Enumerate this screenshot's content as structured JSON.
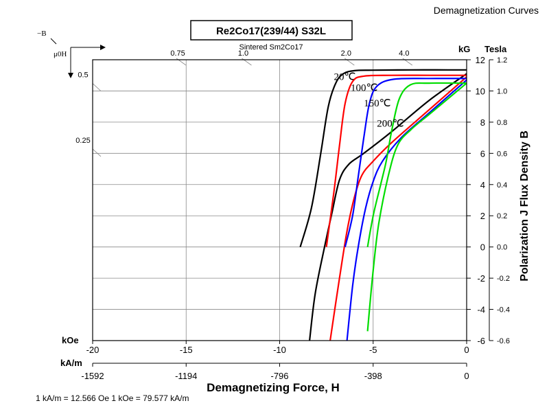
{
  "header": {
    "text": "Demagnetization Curves"
  },
  "chart_data": {
    "type": "line",
    "title": "Re2Co17(239/44) S32L",
    "subtitle": "Sintered Sm2Co17",
    "corner_label_top": "−B",
    "corner_label_bottom": "μ0H",
    "xlabel": "Demagnetizing Force, H",
    "ylabel": "Polarization J Flux Density B",
    "x_unit_koe": "kOe",
    "x_unit_kam": "kA/m",
    "y_unit_kg": "kG",
    "y_unit_tesla": "Tesla",
    "xlim": [
      -20,
      0
    ],
    "ylim": [
      -6,
      12
    ],
    "x_ticks_koe": [
      "-20",
      "-15",
      "-10",
      "-5",
      "0"
    ],
    "x_ticks_kam": [
      "-1592",
      "-1194",
      "-796",
      "-398",
      "0"
    ],
    "y_ticks_kg": [
      "12",
      "10",
      "8",
      "6",
      "4",
      "2",
      "0",
      "-2",
      "-4",
      "-6"
    ],
    "y_ticks_tesla": [
      "1.2",
      "1.0",
      "0.8",
      "0.6",
      "0.4",
      "0.2",
      "0.0",
      "-0.2",
      "-0.4",
      "-0.6"
    ],
    "permeance_top_labels": [
      {
        "text": "0.75",
        "h": -15.3
      },
      {
        "text": "1.0",
        "h": -11.8
      },
      {
        "text": "2.0",
        "h": -6.3
      },
      {
        "text": "4.0",
        "h": -3.2
      }
    ],
    "permeance_left_labels": [
      {
        "text": "0.5",
        "b": 10.7
      },
      {
        "text": "0.25",
        "b": 6.5
      }
    ],
    "footer_note": "1 kA/m = 12.566 Oe 1 kOe = 79.577 kA/m",
    "series": [
      {
        "name": "20℃",
        "label": "20℃",
        "color": "#000000",
        "label_at": [
          -7.1,
          10.7
        ],
        "j_curve": [
          [
            0,
            11.35
          ],
          [
            -1,
            11.35
          ],
          [
            -3,
            11.35
          ],
          [
            -5,
            11.33
          ],
          [
            -6,
            11.3
          ],
          [
            -6.6,
            11.1
          ],
          [
            -7.0,
            10.5
          ],
          [
            -7.4,
            9.0
          ],
          [
            -7.8,
            6.0
          ],
          [
            -8.3,
            2.5
          ],
          [
            -8.9,
            0
          ]
        ],
        "b_curve": [
          [
            0,
            11.1
          ],
          [
            -2,
            9.4
          ],
          [
            -4,
            7.4
          ],
          [
            -5.5,
            6.0
          ],
          [
            -6.3,
            5.3
          ],
          [
            -6.8,
            4.3
          ],
          [
            -7.2,
            2.2
          ],
          [
            -7.6,
            0
          ],
          [
            -8.1,
            -3.0
          ],
          [
            -8.4,
            -6.0
          ]
        ]
      },
      {
        "name": "100℃",
        "label": "100℃",
        "color": "#ff0000",
        "label_at": [
          -6.2,
          10.0
        ],
        "j_curve": [
          [
            0,
            11.0
          ],
          [
            -2,
            11.0
          ],
          [
            -4,
            11.0
          ],
          [
            -5.5,
            10.95
          ],
          [
            -6.1,
            10.6
          ],
          [
            -6.5,
            9.2
          ],
          [
            -6.8,
            6.5
          ],
          [
            -7.1,
            3.5
          ],
          [
            -7.5,
            0
          ]
        ],
        "b_curve": [
          [
            0,
            10.9
          ],
          [
            -2,
            8.8
          ],
          [
            -4,
            6.7
          ],
          [
            -5,
            5.5
          ],
          [
            -5.6,
            4.6
          ],
          [
            -6.0,
            3.2
          ],
          [
            -6.4,
            1.0
          ],
          [
            -6.8,
            -2.0
          ],
          [
            -7.3,
            -6.0
          ]
        ]
      },
      {
        "name": "150℃",
        "label": "150℃",
        "color": "#0000ff",
        "label_at": [
          -5.5,
          9.0
        ],
        "j_curve": [
          [
            0,
            10.8
          ],
          [
            -2,
            10.8
          ],
          [
            -3.9,
            10.75
          ],
          [
            -4.8,
            10.3
          ],
          [
            -5.2,
            9.2
          ],
          [
            -5.5,
            7.0
          ],
          [
            -5.8,
            4.5
          ],
          [
            -6.1,
            2.0
          ],
          [
            -6.5,
            0
          ]
        ],
        "b_curve": [
          [
            0,
            10.7
          ],
          [
            -2,
            8.6
          ],
          [
            -3.5,
            7.0
          ],
          [
            -4.5,
            5.5
          ],
          [
            -5.0,
            4.2
          ],
          [
            -5.4,
            2.5
          ],
          [
            -5.8,
            0
          ],
          [
            -6.1,
            -2.5
          ],
          [
            -6.4,
            -6.0
          ]
        ]
      },
      {
        "name": "200℃",
        "label": "200℃",
        "color": "#00dd00",
        "label_at": [
          -4.8,
          7.7
        ],
        "j_curve": [
          [
            0,
            10.5
          ],
          [
            -2,
            10.5
          ],
          [
            -3,
            10.4
          ],
          [
            -3.6,
            9.5
          ],
          [
            -4.0,
            7.5
          ],
          [
            -4.3,
            5.5
          ],
          [
            -4.6,
            4.0
          ],
          [
            -5.0,
            2.0
          ],
          [
            -5.3,
            0
          ]
        ],
        "b_curve": [
          [
            0,
            10.5
          ],
          [
            -0.5,
            10.0
          ],
          [
            -2,
            8.5
          ],
          [
            -3,
            7.5
          ],
          [
            -3.7,
            6.5
          ],
          [
            -4.2,
            4.5
          ],
          [
            -4.7,
            1.5
          ],
          [
            -5.0,
            -1.5
          ],
          [
            -5.3,
            -5.4
          ]
        ]
      }
    ]
  }
}
